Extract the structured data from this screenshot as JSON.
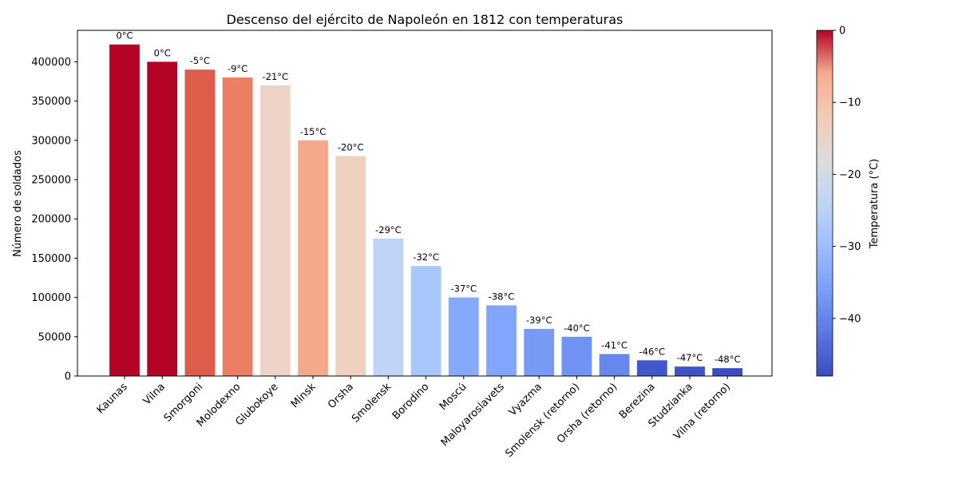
{
  "chart_data": {
    "type": "bar",
    "title": "Descenso del ejército de Napoleón en 1812 con temperaturas",
    "xlabel": "",
    "ylabel": "Número de soldados",
    "ylim": [
      0,
      440000
    ],
    "yticks": [
      0,
      50000,
      100000,
      150000,
      200000,
      250000,
      300000,
      350000,
      400000
    ],
    "categories": [
      "Kaunas",
      "Vilna",
      "Smorgoni",
      "Molodexno",
      "Glubokoye",
      "Minsk",
      "Orsha",
      "Smolensk",
      "Borodino",
      "Moscú",
      "Maloyaroslavets",
      "Vyazma",
      "Smolensk (retorno)",
      "Orsha (retorno)",
      "Berezina",
      "Studzianka",
      "Vilna (retorno)"
    ],
    "values": [
      422000,
      400000,
      390000,
      380000,
      370000,
      300000,
      280000,
      175000,
      140000,
      100000,
      90000,
      60000,
      50000,
      28000,
      20000,
      12000,
      10000
    ],
    "temperatures": [
      0,
      0,
      -5,
      -9,
      -21,
      -15,
      -20,
      -29,
      -32,
      -37,
      -38,
      -39,
      -40,
      -41,
      -46,
      -47,
      -48
    ],
    "data_labels": [
      "0°C",
      "0°C",
      "-5°C",
      "-9°C",
      "-21°C",
      "-15°C",
      "-20°C",
      "-29°C",
      "-32°C",
      "-37°C",
      "-38°C",
      "-39°C",
      "-40°C",
      "-41°C",
      "-46°C",
      "-47°C",
      "-48°C"
    ],
    "colorbar": {
      "label": "Temperatura (°C)",
      "range": [
        -48,
        0
      ],
      "ticks": [
        0,
        -10,
        -20,
        -30,
        -40
      ],
      "tick_labels": [
        "0",
        "−10",
        "−20",
        "−30",
        "−40"
      ],
      "colormap": "coolwarm"
    },
    "grid": false,
    "bar_colors": [
      "#b40426",
      "#b40426",
      "#dc5d4a",
      "#ec7f63",
      "#ecd3c5",
      "#f5a98b",
      "#eed0c0",
      "#bfd3f6",
      "#aac7fd",
      "#86a9fc",
      "#82a6fb",
      "#779af7",
      "#6f92f3",
      "#6687ed",
      "#4257c9",
      "#3e51c5",
      "#3b4cc0"
    ]
  }
}
